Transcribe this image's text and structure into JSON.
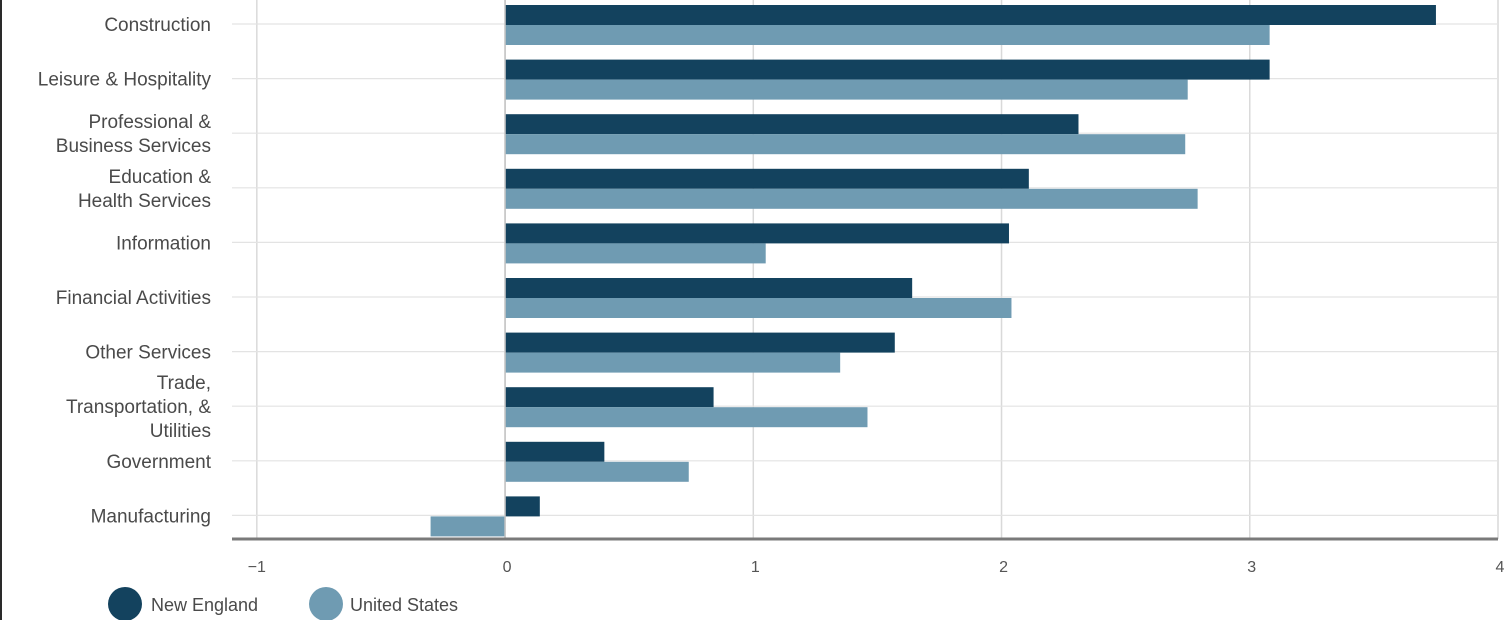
{
  "chart_data": {
    "type": "bar",
    "orientation": "horizontal",
    "categories": [
      [
        "Construction"
      ],
      [
        "Leisure & Hospitality"
      ],
      [
        "Professional &",
        "Business Services"
      ],
      [
        "Education &",
        "Health Services"
      ],
      [
        "Information"
      ],
      [
        "Financial Activities"
      ],
      [
        "Other Services"
      ],
      [
        "Trade,",
        "Transportation, &",
        "Utilities"
      ],
      [
        "Government"
      ],
      [
        "Manufacturing"
      ]
    ],
    "series": [
      {
        "name": "New England",
        "color": "#13425e",
        "values": [
          3.75,
          3.08,
          2.31,
          2.11,
          2.03,
          1.64,
          1.57,
          0.84,
          0.4,
          0.14
        ]
      },
      {
        "name": "United States",
        "color": "#6f9bb2",
        "values": [
          3.08,
          2.75,
          2.74,
          2.79,
          1.05,
          2.04,
          1.35,
          1.46,
          0.74,
          -0.3
        ]
      }
    ],
    "xlim": [
      -1.1,
      4
    ],
    "xticks": [
      -1,
      0,
      1,
      2,
      3,
      4
    ],
    "xtick_labels": [
      "−1",
      "0",
      "1",
      "2",
      "3",
      "4"
    ],
    "grid": "vertical",
    "legend_position": "bottom-left",
    "title": "",
    "xlabel": "",
    "ylabel": ""
  }
}
